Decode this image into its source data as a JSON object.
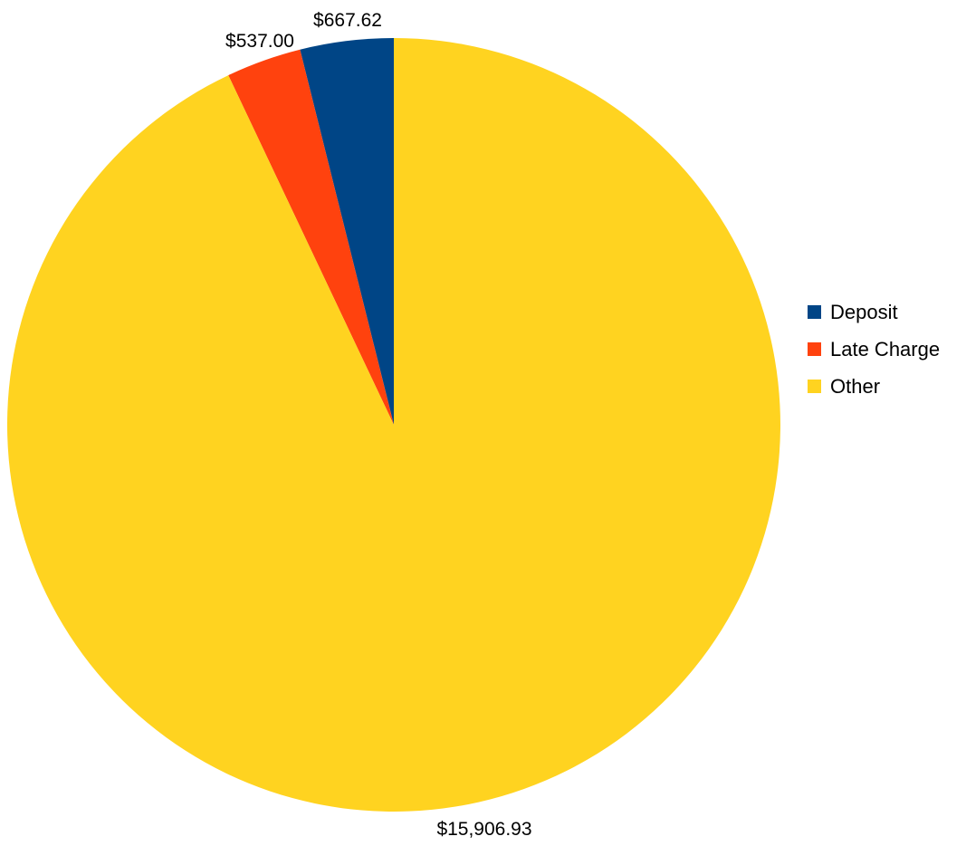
{
  "chart_data": {
    "type": "pie",
    "categories": [
      "Deposit",
      "Late Charge",
      "Other"
    ],
    "values": [
      667.62,
      537.0,
      15906.93
    ],
    "data_labels": [
      "$667.62",
      "$537.00",
      "$15,906.93"
    ],
    "colors": [
      "#004586",
      "#ff420e",
      "#ffd320"
    ],
    "start_angle": "12 o'clock",
    "direction": "counterclockwise",
    "legend_position": "right",
    "title": "",
    "legend": [
      {
        "label": "Deposit",
        "color": "#004586"
      },
      {
        "label": "Late Charge",
        "color": "#ff420e"
      },
      {
        "label": "Other",
        "color": "#ffd320"
      }
    ]
  }
}
